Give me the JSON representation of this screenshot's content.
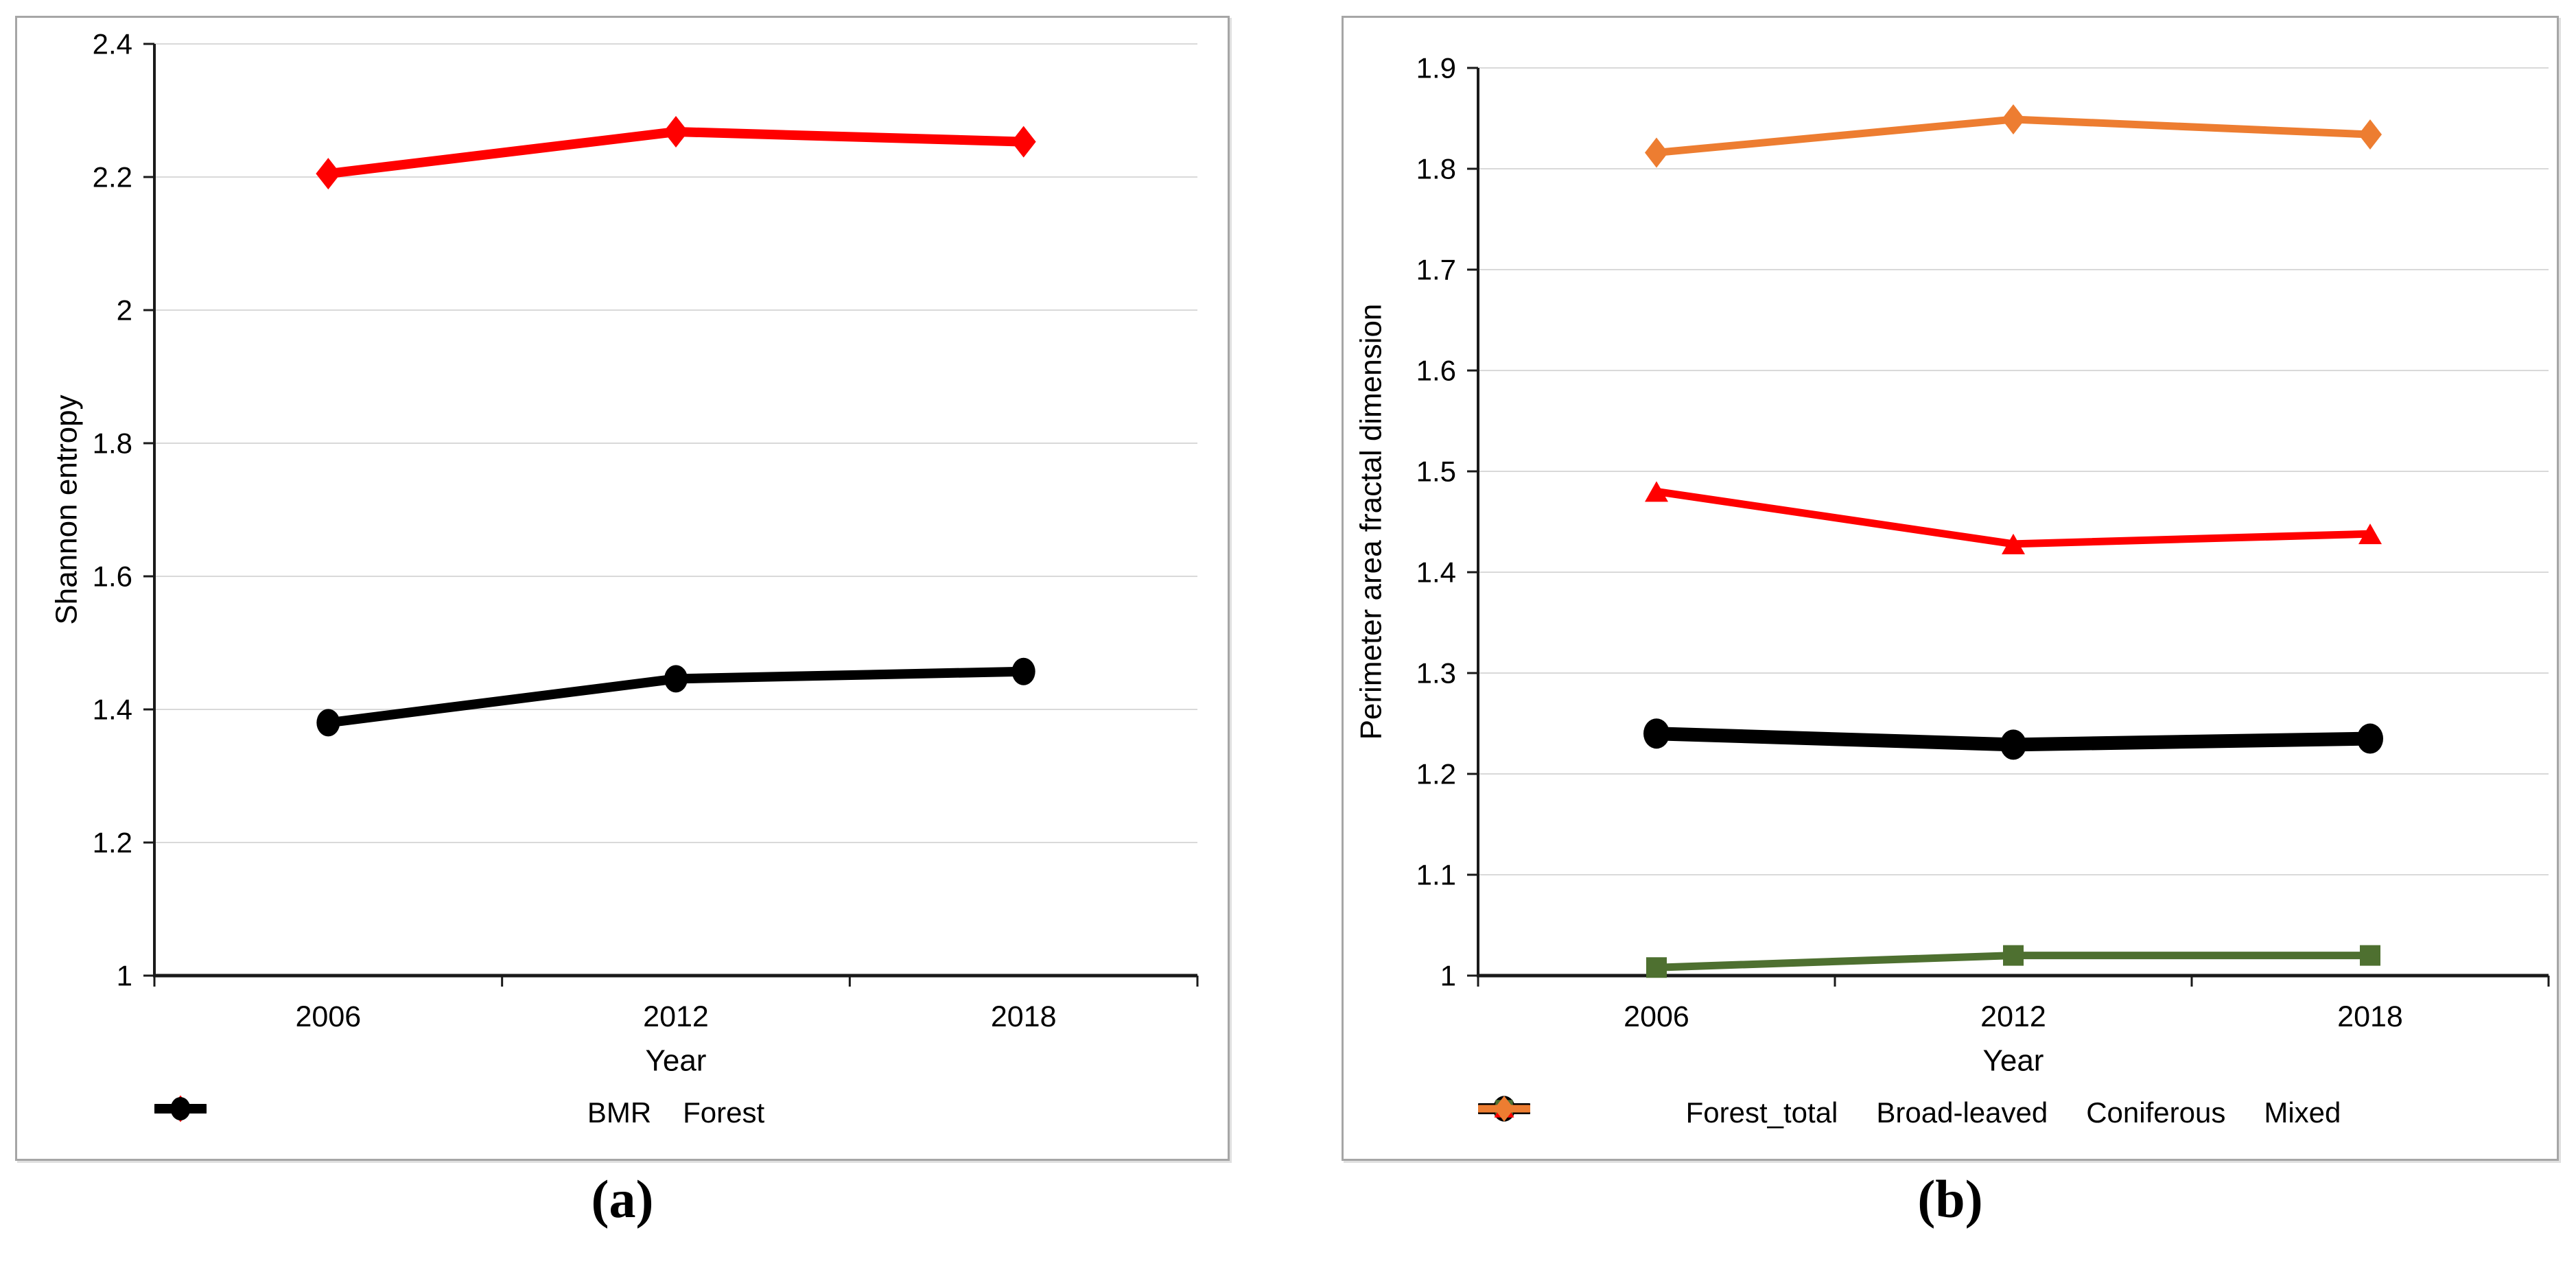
{
  "figure": {
    "background": "#ffffff",
    "panel_border_color": "#a6a6a6",
    "gridline_color": "#d9d9d9",
    "axis_color": "#1a1a1a",
    "text_color": "#000000"
  },
  "chart_data": [
    {
      "id": "a",
      "type": "line",
      "caption": "(a)",
      "title": "",
      "xlabel": "Year",
      "ylabel": "Shannon entropy",
      "categories": [
        "2006",
        "2012",
        "2018"
      ],
      "ylim": [
        1,
        2.4
      ],
      "yticks": [
        1,
        1.2,
        1.4,
        1.6,
        1.8,
        2,
        2.2,
        2.4
      ],
      "ytick_labels": [
        "1",
        "1.2",
        "1.4",
        "1.6",
        "1.8",
        "2",
        "2.2",
        "2.4"
      ],
      "grid": "horizontal",
      "legend_position": "bottom",
      "series": [
        {
          "name": "BMR",
          "color": "#FF0000",
          "marker": "diamond",
          "line_width": 14,
          "values": [
            2.205,
            2.268,
            2.253
          ]
        },
        {
          "name": "Forest",
          "color": "#000000",
          "marker": "circle",
          "line_width": 14,
          "values": [
            1.38,
            1.446,
            1.457
          ]
        }
      ]
    },
    {
      "id": "b",
      "type": "line",
      "caption": "(b)",
      "title": "",
      "xlabel": "Year",
      "ylabel": "Perimeter area fractal dimension",
      "categories": [
        "2006",
        "2012",
        "2018"
      ],
      "ylim": [
        1,
        1.9
      ],
      "yticks": [
        1,
        1.1,
        1.2,
        1.3,
        1.4,
        1.5,
        1.6,
        1.7,
        1.8,
        1.9
      ],
      "ytick_labels": [
        "1",
        "1.1",
        "1.2",
        "1.3",
        "1.4",
        "1.5",
        "1.6",
        "1.7",
        "1.8",
        "1.9"
      ],
      "grid": "horizontal",
      "legend_position": "bottom",
      "series": [
        {
          "name": "Forest_total",
          "color": "#000000",
          "marker": "circle",
          "line_width": 20,
          "values": [
            1.24,
            1.229,
            1.235
          ]
        },
        {
          "name": "Broad-leaved",
          "color": "#4E7030",
          "marker": "square",
          "line_width": 11,
          "values": [
            1.008,
            1.02,
            1.02
          ]
        },
        {
          "name": "Coniferous",
          "color": "#FF0000",
          "marker": "triangle",
          "line_width": 11,
          "values": [
            1.48,
            1.428,
            1.438
          ]
        },
        {
          "name": "Mixed",
          "color": "#ED7D31",
          "marker": "diamond",
          "line_width": 11,
          "values": [
            1.816,
            1.849,
            1.834
          ]
        }
      ]
    }
  ]
}
